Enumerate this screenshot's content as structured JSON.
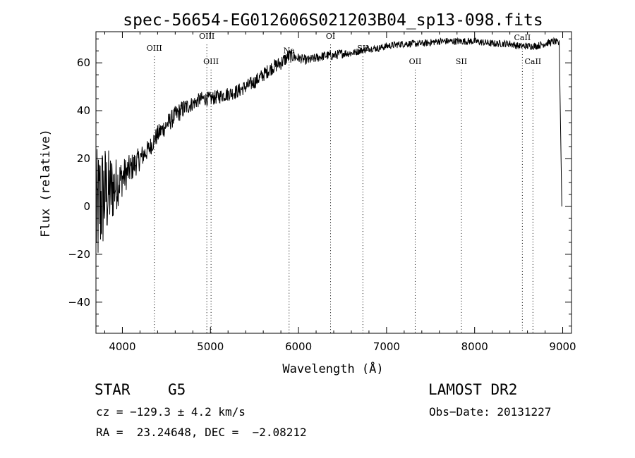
{
  "chart_data": {
    "type": "line",
    "title": "spec-56654-EG012606S021203B04_sp13-098.fits",
    "xlabel": "Wavelength (Å)",
    "ylabel": "Flux (relative)",
    "xlim": [
      3700,
      9100
    ],
    "ylim": [
      -53,
      73
    ],
    "x_ticks": [
      4000,
      5000,
      6000,
      7000,
      8000,
      9000
    ],
    "x_tick_labels": [
      "4000",
      "5000",
      "6000",
      "7000",
      "8000",
      "9000"
    ],
    "y_ticks": [
      -40,
      -20,
      0,
      20,
      40,
      60
    ],
    "y_tick_labels": [
      "−40",
      "−20",
      "0",
      "20",
      "40",
      "60"
    ],
    "grid": false,
    "series": [
      {
        "x": [
          3700,
          3750,
          3800,
          3850,
          3900,
          3950,
          4000,
          4100,
          4200,
          4300,
          4400,
          4500,
          4600,
          4700,
          4800,
          4900,
          5000,
          5100,
          5200,
          5300,
          5400,
          5500,
          5600,
          5700,
          5800,
          5900,
          6000,
          6100,
          6200,
          6300,
          6400,
          6500,
          6600,
          6700,
          6800,
          6900,
          7000,
          7200,
          7400,
          7600,
          7800,
          8000,
          8200,
          8400,
          8500,
          8600,
          8700,
          8800,
          8900,
          8960,
          8990
        ],
        "y": [
          -5,
          2,
          5,
          6,
          8,
          10,
          12,
          16,
          20,
          24,
          30,
          34,
          38,
          41,
          43,
          45,
          45,
          46,
          47,
          48,
          50,
          52,
          55,
          58,
          60,
          63,
          62,
          61,
          62,
          63,
          63,
          64,
          64,
          65,
          66,
          66,
          67,
          68,
          68,
          69,
          69,
          69,
          68,
          68,
          67,
          67,
          67,
          68,
          69,
          68,
          0
        ],
        "noise": [
          28,
          26,
          22,
          18,
          14,
          10,
          8,
          6,
          5,
          4,
          4,
          4,
          4,
          4,
          3,
          3,
          3,
          3,
          3,
          3,
          3,
          3,
          3,
          3,
          3,
          3,
          2,
          2,
          2,
          2,
          2,
          2,
          1.5,
          1.5,
          1.5,
          1.5,
          1.5,
          1.5,
          1.5,
          1.5,
          1.5,
          1.5,
          1.5,
          1.5,
          1.5,
          1.5,
          1.5,
          1.5,
          1.5,
          1.5,
          0
        ]
      }
    ],
    "line_markers": [
      {
        "name": "OIII",
        "x": 4363,
        "label_y": 65
      },
      {
        "name": "OIII",
        "x": 4959,
        "label_y": 70
      },
      {
        "name": "OIII",
        "x": 5007,
        "label_y": 59.5
      },
      {
        "name": "Na",
        "x": 5893,
        "label_y": 64
      },
      {
        "name": "OI",
        "x": 6364,
        "label_y": 70
      },
      {
        "name": "SII",
        "x": 6731,
        "label_y": 65
      },
      {
        "name": "OII",
        "x": 7325,
        "label_y": 59.5
      },
      {
        "name": "SII",
        "x": 7850,
        "label_y": 59.5
      },
      {
        "name": "CaII",
        "x": 8542,
        "label_y": 69.5
      },
      {
        "name": "CaII",
        "x": 8662,
        "label_y": 59.5
      }
    ]
  },
  "info": {
    "class": "STAR",
    "subclass": "G5",
    "survey": "LAMOST DR2",
    "cz": "cz = −129.3 ± 4.2 km/s",
    "obs_date": "Obs−Date: 20131227",
    "radec": "RA =  23.24648, DEC =  −2.08212"
  }
}
